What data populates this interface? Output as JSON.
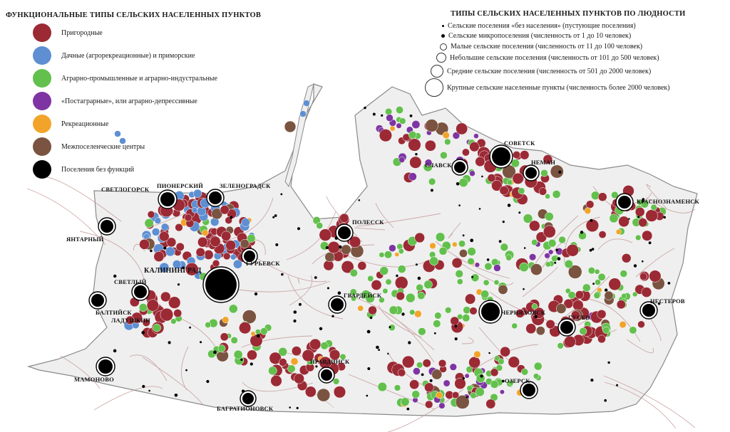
{
  "legend_functional": {
    "title": "ФУНКЦИОНАЛЬНЫЕ ТИПЫ СЕЛЬСКИХ НАСЕЛЕННЫХ ПУНКТОВ",
    "items": [
      {
        "label": "Пригородные",
        "color": "#9b2a35"
      },
      {
        "label": "Дачные (агрорекреационные) и приморские",
        "color": "#5e8fd3"
      },
      {
        "label": "Аграрно-промышленные и аграрно-индустральные",
        "color": "#63c04d"
      },
      {
        "label": "«Постаграрные», или аграрно-депрессивные",
        "color": "#7e35a3"
      },
      {
        "label": "Рекреационные",
        "color": "#f2a42a"
      },
      {
        "label": "Межпоселенческие центры",
        "color": "#7a5440"
      },
      {
        "label": "Поселения без функций",
        "color": "#000000"
      }
    ]
  },
  "legend_size": {
    "title": "ТИПЫ СЕЛЬСКИХ НАСЕЛЕННЫХ ПУНКТОВ ПО ЛЮДНОСТИ",
    "items": [
      {
        "label": "Сельские поселения «без населения» (пустующие поселения)"
      },
      {
        "label": "Сельские микропоселения (численность от 1 до 10 человек)"
      },
      {
        "label": "Малые сельские поселения (численность от 11 до 100 человек)"
      },
      {
        "label": "Небольшие сельские поселения (численность от 101 до 500 человек)"
      },
      {
        "label": "Средние сельские поселения (численность от 501 до 2000 человек)"
      },
      {
        "label": "Крупные сельские населенные пункты (численность более 2000 человек)"
      }
    ]
  },
  "cities": {
    "svetlogorsk": "СВЕТЛОГОРСК",
    "pionersky": "ПИОНЕРСКИЙ",
    "zelenogradsk": "ЗЕЛЕНОГРАДСК",
    "yantarny": "ЯНТАРНЫЙ",
    "polessk": "ПОЛЕССК",
    "guryevsk": "ГУРЬЕВСК",
    "kaliningrad": "КАЛИНИНГРАД",
    "svetly": "СВЕТЛЫЙ",
    "baltiysk": "БАЛТИЙСК",
    "ladushkin": "ЛАДУШКИН",
    "gvardeysk": "ГВАРДЕЙСК",
    "chernyakhovsk": "ЧЕРНЯХОВСК",
    "gusev": "ГУСЕВ",
    "nesterov": "НЕСТЕРОВ",
    "krasnoznamensk": "КРАСНОЗНАМЕНСК",
    "sovetsk": "СОВЕТСК",
    "neman": "НЕМАН",
    "slavsk": "СЛАВСК",
    "pravdinsk": "ПРАВДИНСК",
    "ozyorsk": "ОЗЕРСК",
    "mamonovo": "МАМОНОВО",
    "bagrationovsk": "БАГРАТИОНОВСК"
  }
}
